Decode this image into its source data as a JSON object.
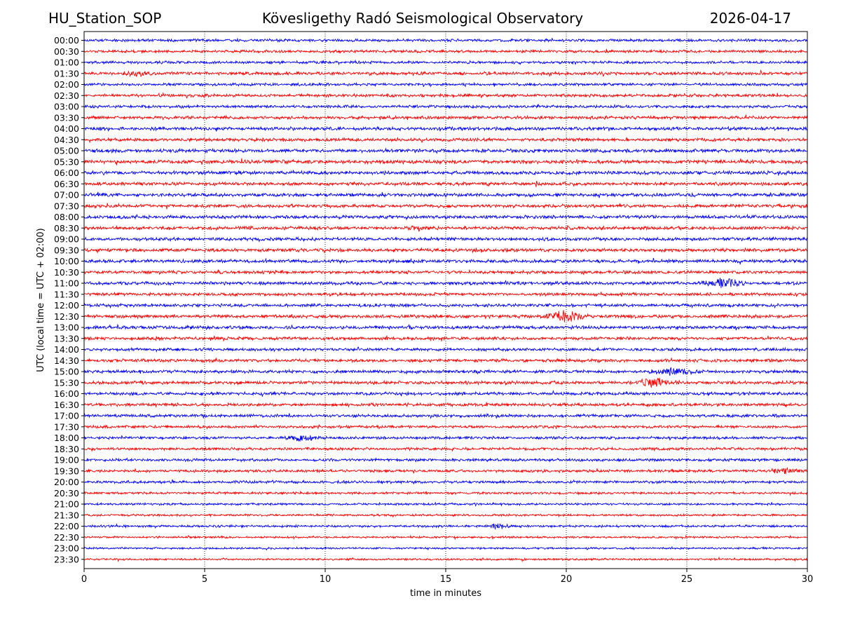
{
  "header": {
    "station": "HU_Station_SOP",
    "observatory": "Kövesligethy Radó Seismological Observatory",
    "date": "2026-04-17"
  },
  "chart_data": {
    "type": "line",
    "title": "Kövesligethy Radó Seismological Observatory",
    "xlabel": "time in minutes",
    "ylabel": "UTC (local time = UTC + 02:00)",
    "xlim": [
      0,
      30
    ],
    "xticks": [
      0,
      5,
      10,
      15,
      20,
      25,
      30
    ],
    "grid": "vertical dotted at x ticks",
    "row_labels": [
      "00:00",
      "00:30",
      "01:00",
      "01:30",
      "02:00",
      "02:30",
      "03:00",
      "03:30",
      "04:00",
      "04:30",
      "05:00",
      "05:30",
      "06:00",
      "06:30",
      "07:00",
      "07:30",
      "08:00",
      "08:30",
      "09:00",
      "09:30",
      "10:00",
      "10:30",
      "11:00",
      "11:30",
      "12:00",
      "12:30",
      "13:00",
      "13:30",
      "14:00",
      "14:30",
      "15:00",
      "15:30",
      "16:00",
      "16:30",
      "17:00",
      "17:30",
      "18:00",
      "18:30",
      "19:00",
      "19:30",
      "20:00",
      "20:30",
      "21:00",
      "21:30",
      "22:00",
      "22:30",
      "23:00",
      "23:30"
    ],
    "trace_colors": [
      "#0000ff",
      "#ff0000"
    ],
    "base_noise": [
      0.7,
      0.7,
      0.7,
      0.8,
      0.7,
      0.75,
      0.75,
      0.8,
      0.85,
      0.85,
      0.9,
      0.95,
      0.9,
      0.85,
      0.9,
      0.85,
      0.85,
      0.85,
      0.85,
      0.85,
      0.85,
      0.8,
      0.85,
      0.8,
      0.8,
      0.85,
      0.85,
      0.8,
      0.75,
      0.8,
      0.8,
      0.85,
      0.8,
      0.8,
      0.75,
      0.7,
      0.7,
      0.7,
      0.7,
      0.7,
      0.7,
      0.6,
      0.55,
      0.55,
      0.6,
      0.5,
      0.5,
      0.5
    ],
    "events": [
      {
        "row": "11:00",
        "minute": 26.5,
        "amplitude": 2.6,
        "duration_min": 1.2
      },
      {
        "row": "12:30",
        "minute": 20.0,
        "amplitude": 3.2,
        "duration_min": 1.3
      },
      {
        "row": "15:00",
        "minute": 24.5,
        "amplitude": 1.8,
        "duration_min": 1.5
      },
      {
        "row": "15:30",
        "minute": 23.6,
        "amplitude": 2.2,
        "duration_min": 1.3
      },
      {
        "row": "18:00",
        "minute": 9.1,
        "amplitude": 1.8,
        "duration_min": 1.0
      },
      {
        "row": "19:30",
        "minute": 29.1,
        "amplitude": 2.0,
        "duration_min": 0.8
      },
      {
        "row": "22:00",
        "minute": 17.2,
        "amplitude": 1.6,
        "duration_min": 0.7
      },
      {
        "row": "08:30",
        "minute": 13.8,
        "amplitude": 1.3,
        "duration_min": 0.5
      },
      {
        "row": "01:30",
        "minute": 2.2,
        "amplitude": 1.2,
        "duration_min": 0.8
      }
    ]
  }
}
